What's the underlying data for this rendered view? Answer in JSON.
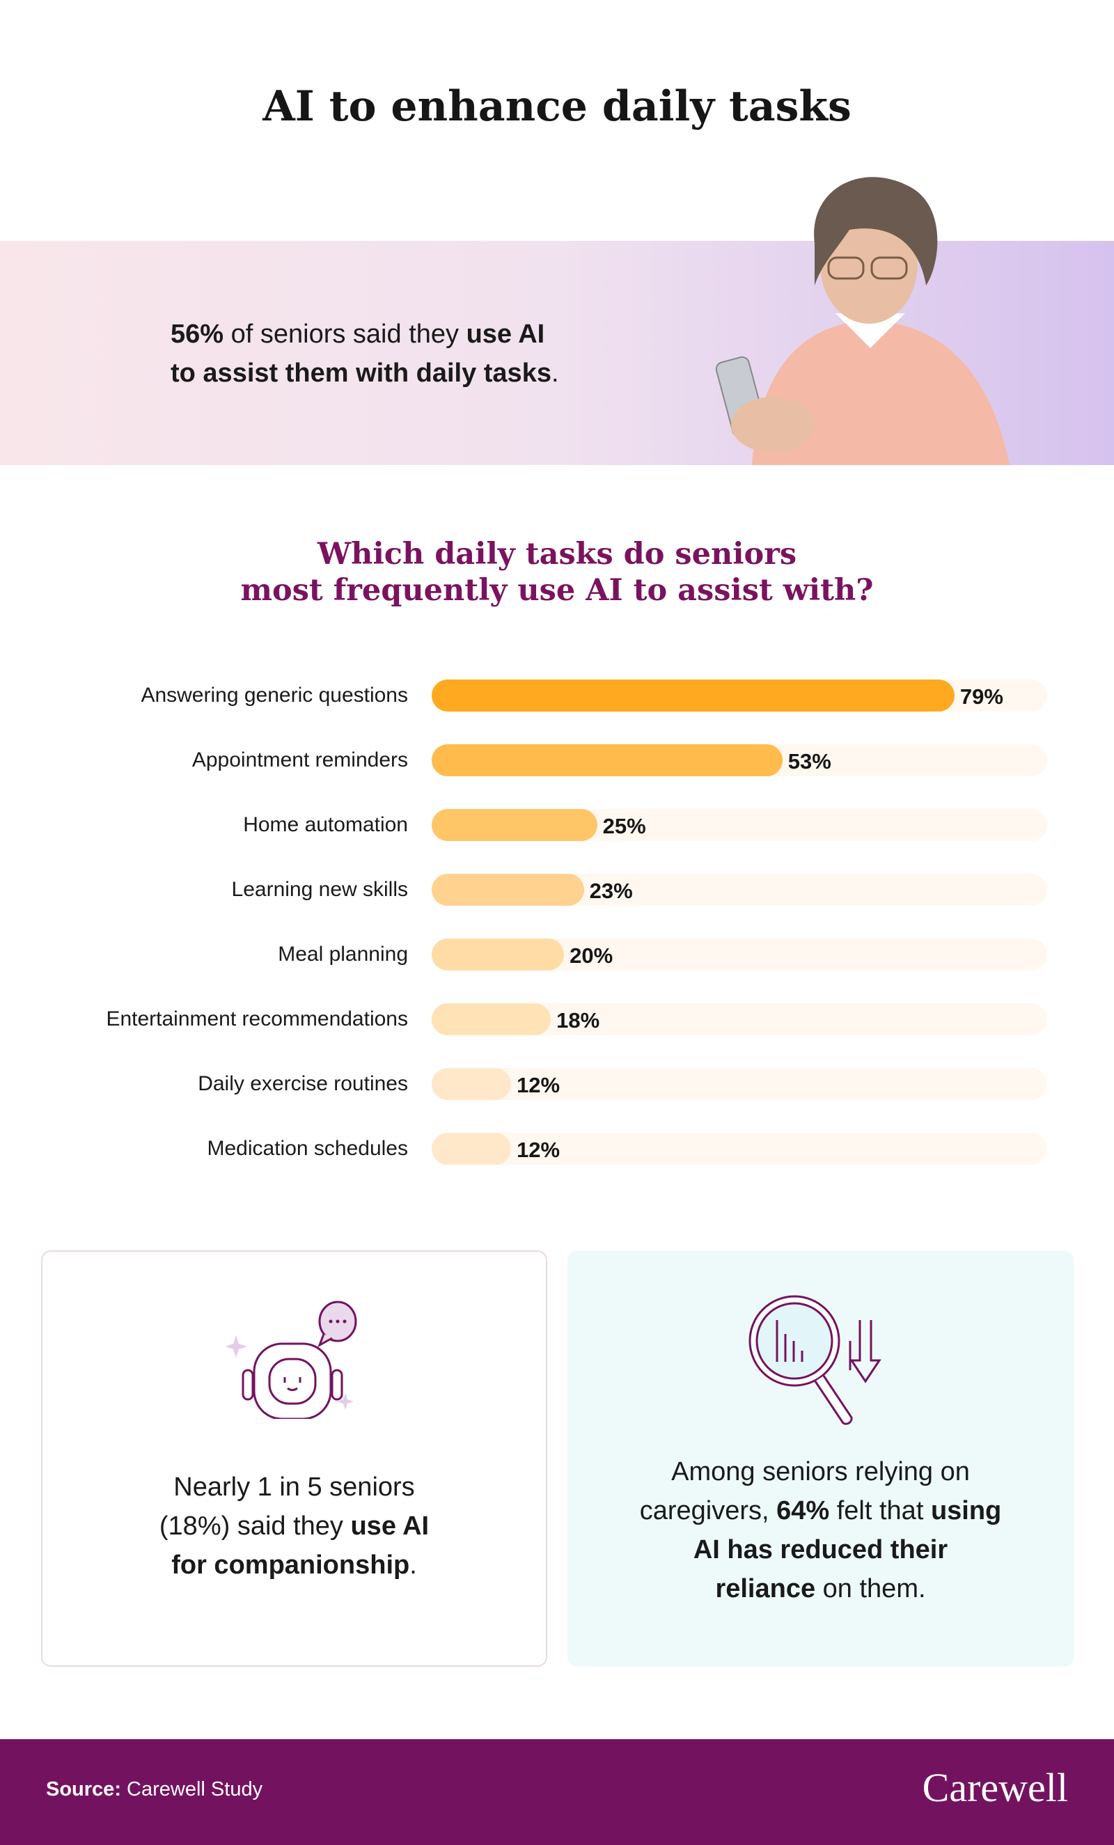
{
  "title": "AI to enhance daily tasks",
  "banner": {
    "stat": "56%",
    "text1": " of seniors said they ",
    "bold1": "use AI",
    "bold2": "to assist them with daily tasks",
    "end": "."
  },
  "question": {
    "line1": "Which daily tasks do seniors",
    "line2": "most frequently use AI to assist with?"
  },
  "chart_data": {
    "type": "bar",
    "orientation": "horizontal",
    "title": "Which daily tasks do seniors most frequently use AI to assist with?",
    "categories": [
      "Answering generic questions",
      "Appointment reminders",
      "Home automation",
      "Learning new skills",
      "Meal planning",
      "Entertainment recommendations",
      "Daily exercise routines",
      "Medication schedules"
    ],
    "values": [
      79,
      53,
      25,
      23,
      20,
      18,
      12,
      12
    ],
    "labels": [
      "79%",
      "53%",
      "25%",
      "23%",
      "20%",
      "18%",
      "12%",
      "12%"
    ],
    "colors": [
      "#ffa920",
      "#ffbb4c",
      "#ffc668",
      "#ffd28f",
      "#ffdca6",
      "#ffe2b6",
      "#ffe8ca",
      "#ffe8ca"
    ],
    "track_color": "#fff8f0"
  },
  "cards": {
    "left": {
      "icon": "robot-chat-icon",
      "l1": "Nearly 1 in 5 seniors",
      "l2a": "(18%) said they ",
      "l2b": "use AI",
      "l3a": "for companionship",
      "l3b": "."
    },
    "right": {
      "icon": "magnifier-chart-icon",
      "l1": "Among seniors relying on",
      "l2a": "caregivers, ",
      "l2b": "64%",
      "l2c": " felt that ",
      "l2d": "using",
      "l3": "AI has reduced their",
      "l4a": "reliance",
      "l4b": " on them."
    }
  },
  "footer": {
    "source_label": "Source:",
    "source": " Carewell Study",
    "logo": "Carewell"
  },
  "colors": {
    "brand": "#73135f",
    "accent": "#ffa920"
  }
}
